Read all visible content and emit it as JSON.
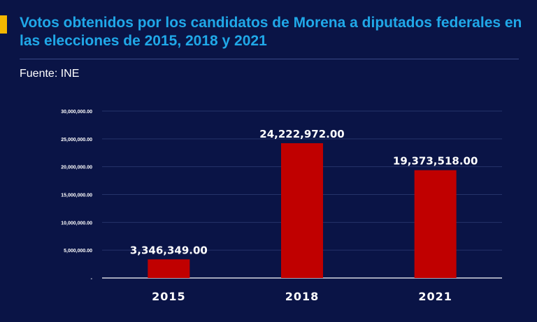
{
  "header": {
    "title": "Votos obtenidos por los candidatos de Morena a diputados federales en las elecciones de  2015, 2018 y 2021",
    "source": "Fuente: INE"
  },
  "colors": {
    "background": "#0a1446",
    "title": "#20a8e8",
    "accent": "#f5b800",
    "bar": "#c00000",
    "text": "#ffffff"
  },
  "chart_data": {
    "type": "bar",
    "title": "Votos obtenidos por los candidatos de Morena a diputados federales en las elecciones de  2015, 2018 y 2021",
    "xlabel": "",
    "ylabel": "",
    "categories": [
      "2015",
      "2018",
      "2021"
    ],
    "values": [
      3346349,
      24222972,
      19373518
    ],
    "data_labels": [
      "3,346,349.00",
      "24,222,972.00",
      "19,373,518.00"
    ],
    "ylim": [
      0,
      30000000
    ],
    "yticks": [
      0,
      5000000,
      10000000,
      15000000,
      20000000,
      25000000,
      30000000
    ],
    "ytick_labels": [
      "-",
      "5,000,000.00",
      "10,000,000.00",
      "15,000,000.00",
      "20,000,000.00",
      "25,000,000.00",
      "30,000,000.00"
    ],
    "grid": true,
    "legend": "none"
  }
}
